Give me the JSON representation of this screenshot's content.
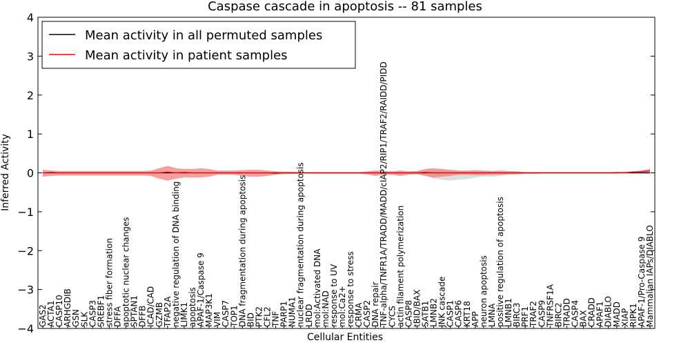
{
  "chart_data": {
    "type": "line",
    "title": "Caspase cascade in apoptosis -- 81 samples",
    "xlabel": "Cellular Entities",
    "ylabel": "Inferred Activity",
    "ylim": [
      -4,
      4
    ],
    "yticks": [
      -4,
      -3,
      -2,
      -1,
      0,
      1,
      2,
      3,
      4
    ],
    "legend": {
      "placement": "top-left",
      "entries": [
        {
          "label": "Mean activity in all permuted samples",
          "color": "#000000"
        },
        {
          "label": "Mean activity in patient samples",
          "color": "#ff0000"
        }
      ]
    },
    "categories": [
      "GAS2",
      "ACTA1",
      "CASP10",
      "ARHGDIB",
      "GSN",
      "SLK",
      "CASP3",
      "SREBF1",
      "stress fiber formation",
      "DFFA",
      "apoptotic nuclear changes",
      "SPTAN1",
      "DFFB",
      "ICAD/CAD",
      "GZMB",
      "TFAP2A",
      "negative regulation of DNA binding",
      "LIMK1",
      "apoptosis",
      "APAF-1/Caspase 9",
      "MAP3K1",
      "VIM",
      "CASP7",
      "TOP1",
      "DNA fragmentation during apoptosis",
      "BID",
      "PTK2",
      "CFL2",
      "TNF",
      "PARP1",
      "NUMA1",
      "nuclear fragmentation during apoptosis",
      "LRDD",
      "mol:Activated DNA",
      "mol:NAD",
      "response to UV",
      "mol:Ca2+",
      "response to stress",
      "CRMA",
      "CASP2",
      "DNA repair",
      "TNF-alpha/TNFR1A/TRADD/MADD/cIAP2/RIP1/TRAF2/RAIDD/PIDD",
      "CYCS",
      "actin filament polymerization",
      "CASP8",
      "tBID/BAX",
      "SATB1",
      "LMNB2",
      "JNK cascade",
      "CASP1",
      "CASP6",
      "KRT18",
      "APP",
      "neuron apoptosis",
      "LMNA",
      "positive regulation of apoptosis",
      "LMNB1",
      "BIRC3",
      "PRF1",
      "TRAF2",
      "CASP9",
      "TNFRSF1A",
      "BIRC2",
      "TRADD",
      "CASP4",
      "BAX",
      "CRADD",
      "APAF1",
      "DIABLO",
      "MADD",
      "XIAP",
      "RIPK1",
      "APAF-1/Pro-Caspase 9",
      "Mammalian IAPs/DIABLO"
    ],
    "series": [
      {
        "name": "Mean activity in all permuted samples",
        "color": "#000000",
        "values": [
          0,
          0,
          0,
          0,
          0,
          0,
          0,
          0,
          0,
          0,
          0,
          0,
          0,
          0,
          0,
          0,
          0,
          0,
          0,
          0,
          0,
          0,
          0,
          0,
          0,
          0,
          0,
          0,
          0,
          0,
          0,
          0,
          0,
          0,
          0,
          0,
          0,
          0,
          0,
          0,
          0,
          0,
          0,
          0,
          0,
          0,
          0,
          0,
          0,
          0,
          0,
          0,
          0,
          0,
          0,
          0,
          0,
          0,
          0,
          0,
          0,
          0,
          0,
          0,
          0,
          0,
          0,
          0,
          0,
          0,
          0,
          0,
          0,
          0
        ],
        "band_low": [
          -0.01,
          -0.01,
          -0.01,
          -0.01,
          -0.01,
          -0.01,
          -0.01,
          -0.01,
          -0.01,
          -0.01,
          -0.01,
          -0.01,
          -0.01,
          -0.01,
          -0.01,
          -0.01,
          -0.01,
          -0.01,
          -0.01,
          -0.01,
          -0.01,
          -0.01,
          -0.01,
          -0.01,
          -0.01,
          -0.01,
          -0.01,
          -0.01,
          -0.01,
          -0.01,
          -0.01,
          -0.01,
          -0.01,
          -0.01,
          -0.01,
          -0.01,
          -0.01,
          -0.01,
          -0.01,
          -0.01,
          -0.01,
          -0.01,
          -0.01,
          -0.02,
          -0.02,
          -0.05,
          -0.08,
          -0.14,
          -0.18,
          -0.2,
          -0.18,
          -0.16,
          -0.12,
          -0.1,
          -0.1,
          -0.08,
          -0.05,
          -0.05,
          -0.03,
          -0.03,
          -0.02,
          -0.02,
          -0.02,
          -0.02,
          -0.02,
          -0.02,
          -0.02,
          -0.02,
          -0.02,
          -0.02,
          -0.02,
          -0.02,
          -0.02,
          -0.02
        ],
        "band_high": [
          0.01,
          0.01,
          0.01,
          0.01,
          0.01,
          0.01,
          0.01,
          0.01,
          0.01,
          0.01,
          0.01,
          0.01,
          0.01,
          0.01,
          0.01,
          0.01,
          0.01,
          0.01,
          0.01,
          0.01,
          0.01,
          0.01,
          0.01,
          0.01,
          0.01,
          0.01,
          0.01,
          0.01,
          0.01,
          0.01,
          0.01,
          0.01,
          0.01,
          0.01,
          0.01,
          0.01,
          0.01,
          0.01,
          0.01,
          0.01,
          0.01,
          0.01,
          0.01,
          0.02,
          0.02,
          0.04,
          0.06,
          0.08,
          0.08,
          0.06,
          0.05,
          0.04,
          0.03,
          0.03,
          0.03,
          0.02,
          0.02,
          0.02,
          0.02,
          0.02,
          0.02,
          0.02,
          0.02,
          0.02,
          0.02,
          0.02,
          0.02,
          0.02,
          0.02,
          0.02,
          0.02,
          0.02,
          0.02,
          0.02
        ]
      },
      {
        "name": "Mean activity in patient samples",
        "color": "#ff0000",
        "values": [
          0,
          0.01,
          0,
          0,
          0,
          0,
          0,
          0,
          0,
          0,
          0,
          0,
          0,
          0,
          0,
          0.02,
          0,
          0.01,
          0,
          0,
          0,
          0,
          0,
          0,
          0,
          0,
          0,
          0,
          -0.01,
          0,
          0,
          0,
          0,
          0,
          0,
          0,
          0,
          0,
          0,
          0,
          0,
          0,
          0,
          0,
          0,
          0,
          0.01,
          0,
          0,
          0,
          0,
          0,
          0,
          0,
          0,
          0,
          0,
          0,
          0,
          0,
          0,
          0,
          0,
          0,
          0,
          0,
          0,
          0,
          0,
          0,
          0,
          0.02,
          0.03,
          0.05
        ],
        "band_low": [
          -0.1,
          -0.08,
          -0.07,
          -0.07,
          -0.07,
          -0.07,
          -0.07,
          -0.07,
          -0.07,
          -0.07,
          -0.07,
          -0.07,
          -0.07,
          -0.08,
          -0.15,
          -0.2,
          -0.15,
          -0.12,
          -0.12,
          -0.12,
          -0.1,
          -0.05,
          -0.05,
          -0.05,
          -0.08,
          -0.1,
          -0.1,
          -0.08,
          -0.05,
          -0.03,
          -0.03,
          -0.02,
          -0.02,
          -0.02,
          -0.02,
          -0.02,
          -0.02,
          -0.02,
          -0.02,
          -0.04,
          -0.08,
          -0.05,
          -0.05,
          -0.08,
          -0.05,
          -0.03,
          -0.08,
          -0.12,
          -0.1,
          -0.08,
          -0.05,
          -0.05,
          -0.06,
          -0.06,
          -0.05,
          -0.05,
          -0.04,
          -0.03,
          -0.02,
          -0.02,
          -0.01,
          -0.01,
          -0.01,
          -0.01,
          -0.01,
          -0.01,
          -0.01,
          -0.01,
          -0.01,
          -0.01,
          -0.01,
          -0.01,
          -0.01,
          -0.01
        ],
        "band_high": [
          0.08,
          0.06,
          0.05,
          0.05,
          0.05,
          0.05,
          0.05,
          0.05,
          0.05,
          0.05,
          0.05,
          0.05,
          0.05,
          0.06,
          0.12,
          0.18,
          0.12,
          0.1,
          0.1,
          0.12,
          0.1,
          0.06,
          0.06,
          0.06,
          0.07,
          0.08,
          0.08,
          0.06,
          0.04,
          0.03,
          0.03,
          0.02,
          0.02,
          0.02,
          0.02,
          0.02,
          0.02,
          0.02,
          0.02,
          0.04,
          0.06,
          0.05,
          0.04,
          0.06,
          0.04,
          0.05,
          0.1,
          0.12,
          0.1,
          0.08,
          0.06,
          0.06,
          0.07,
          0.06,
          0.05,
          0.06,
          0.05,
          0.04,
          0.02,
          0.02,
          0.02,
          0.02,
          0.02,
          0.02,
          0.02,
          0.02,
          0.02,
          0.02,
          0.02,
          0.03,
          0.03,
          0.04,
          0.06,
          0.1
        ]
      }
    ]
  }
}
